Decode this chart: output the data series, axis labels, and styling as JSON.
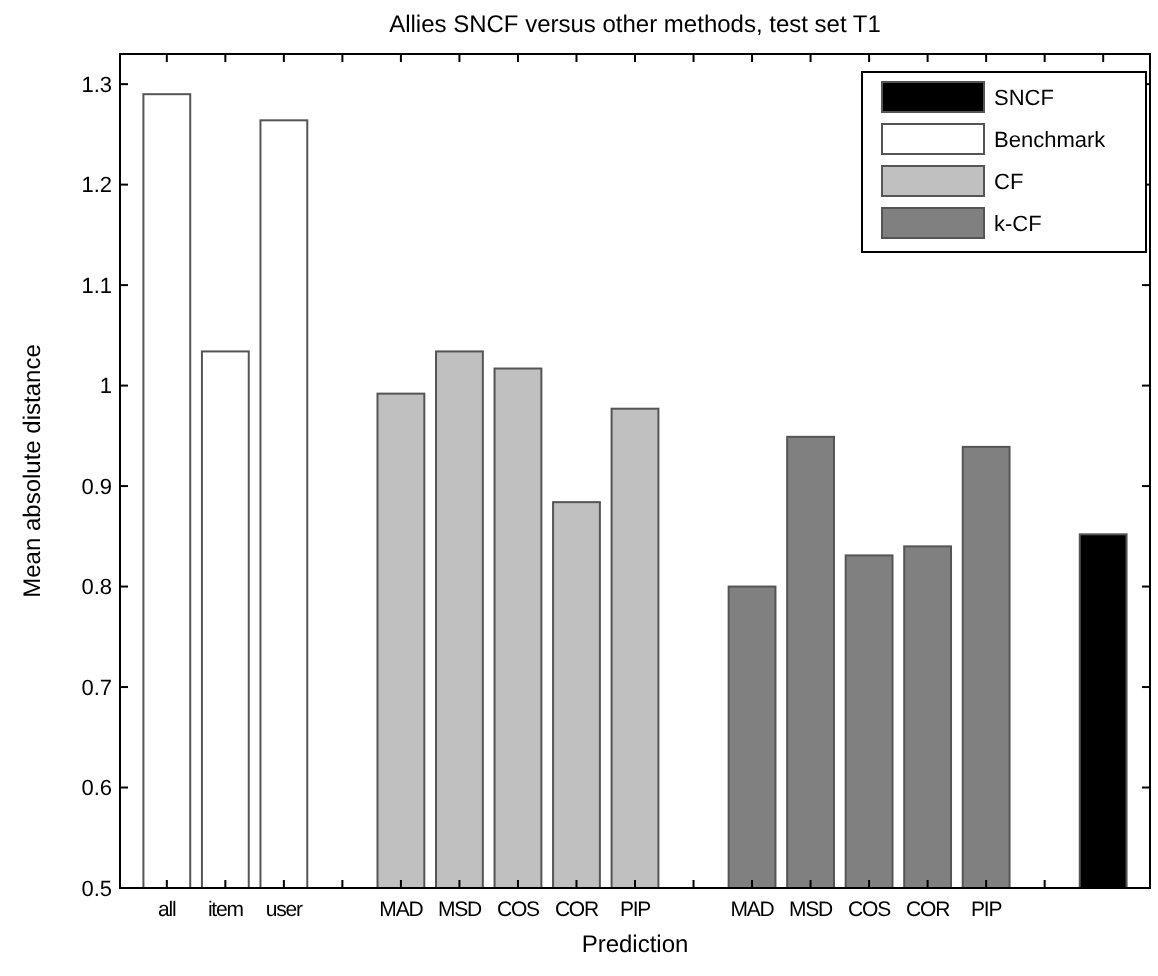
{
  "chart_data": {
    "type": "bar",
    "title": "Allies SNCF versus other methods, test set T1",
    "xlabel": "Prediction",
    "ylabel": "Mean absolute distance",
    "categories": [
      "all",
      "item",
      "user",
      null,
      "MAD",
      "MSD",
      "COS",
      "COR",
      "PIP",
      null,
      "MAD",
      "MSD",
      "COS",
      "COR",
      "PIP",
      null,
      null
    ],
    "series": [
      {
        "name": "SNCF",
        "color": "#000000",
        "values": [
          null,
          null,
          null,
          null,
          null,
          null,
          null,
          null,
          null,
          null,
          null,
          null,
          null,
          null,
          null,
          null,
          0.852
        ]
      },
      {
        "name": "Benchmark",
        "color": "#ffffff",
        "values": [
          1.29,
          1.034,
          1.264,
          null,
          null,
          null,
          null,
          null,
          null,
          null,
          null,
          null,
          null,
          null,
          null,
          null,
          null
        ]
      },
      {
        "name": "CF",
        "color": "#c0c0c0",
        "values": [
          null,
          null,
          null,
          null,
          0.992,
          1.034,
          1.017,
          0.884,
          0.977,
          null,
          null,
          null,
          null,
          null,
          null,
          null,
          null
        ]
      },
      {
        "name": "k-CF",
        "color": "#808080",
        "values": [
          null,
          null,
          null,
          null,
          null,
          null,
          null,
          null,
          null,
          null,
          0.8,
          0.949,
          0.831,
          0.84,
          0.939,
          null,
          null
        ]
      }
    ],
    "ylim": [
      0.5,
      1.33
    ],
    "yticks": [
      0.5,
      0.6,
      0.7,
      0.8,
      0.9,
      1,
      1.1,
      1.2,
      1.3
    ],
    "grid": false,
    "legend": "top right"
  }
}
